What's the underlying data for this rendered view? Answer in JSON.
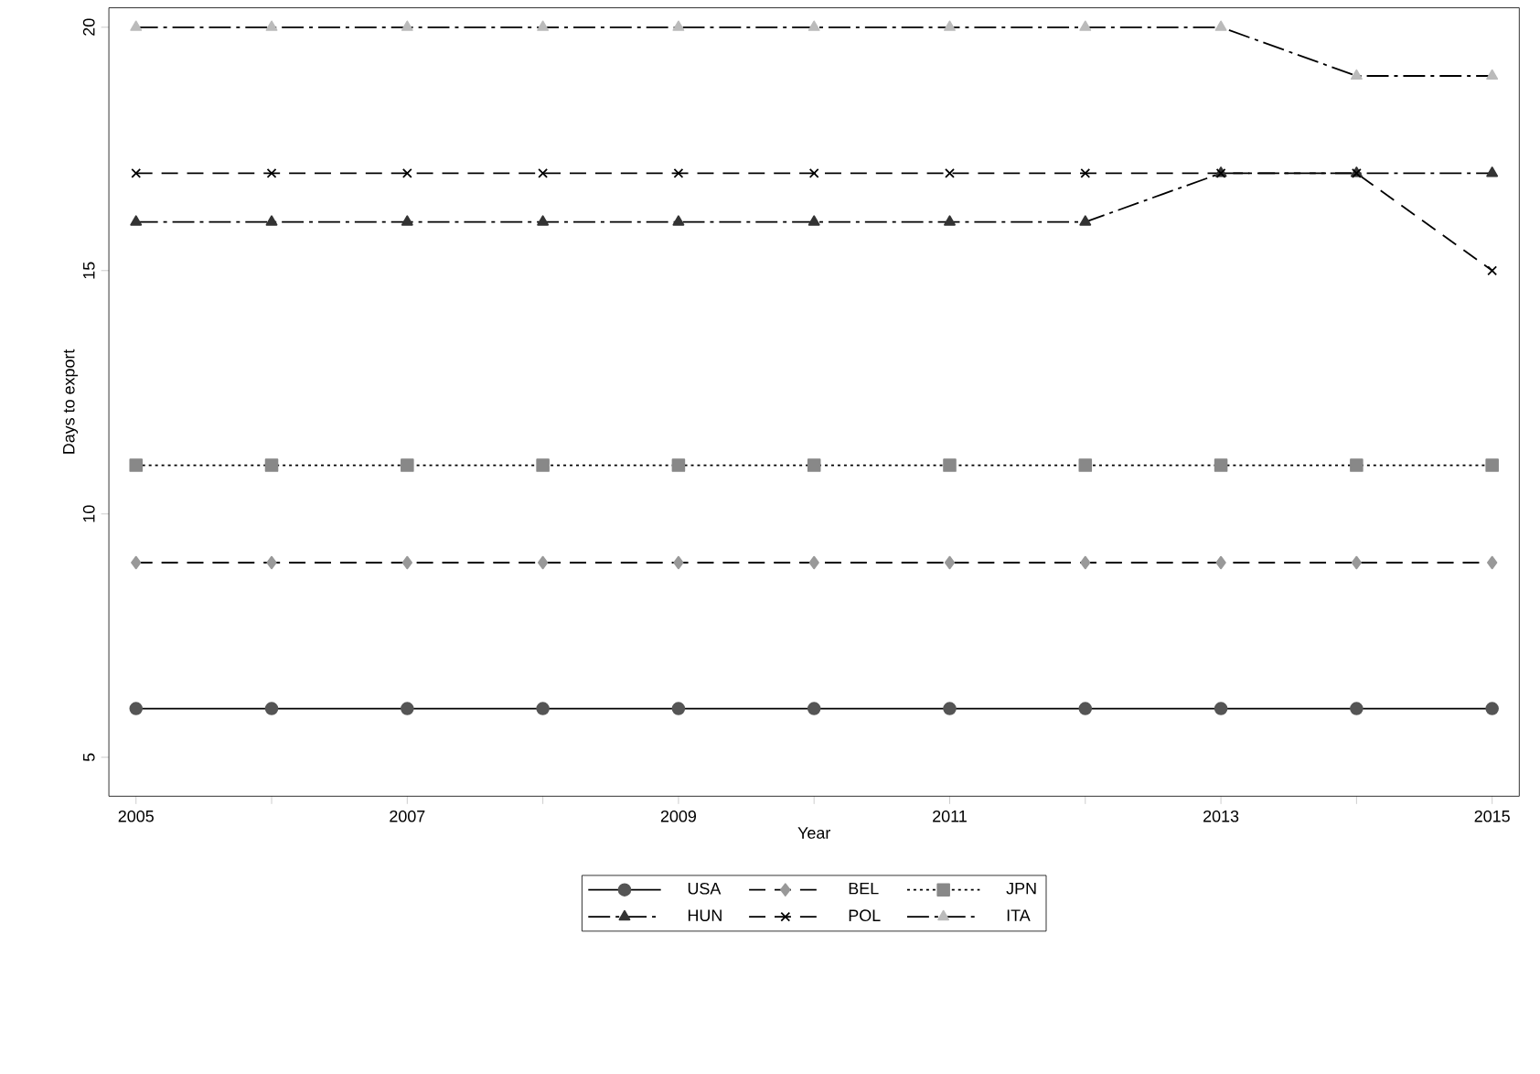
{
  "chart_data": {
    "type": "line",
    "xlabel": "Year",
    "ylabel": "Days to export",
    "x": [
      2005,
      2006,
      2007,
      2008,
      2009,
      2010,
      2011,
      2012,
      2013,
      2014,
      2015
    ],
    "series": [
      {
        "name": "USA",
        "color": "#555555",
        "marker": "circle",
        "line_style": "solid",
        "values": [
          6,
          6,
          6,
          6,
          6,
          6,
          6,
          6,
          6,
          6,
          6
        ]
      },
      {
        "name": "BEL",
        "color": "#999999",
        "marker": "diamond",
        "line_style": "dashed",
        "values": [
          9,
          9,
          9,
          9,
          9,
          9,
          9,
          9,
          9,
          9,
          9
        ]
      },
      {
        "name": "JPN",
        "color": "#888888",
        "marker": "square",
        "line_style": "dotted",
        "values": [
          11,
          11,
          11,
          11,
          11,
          11,
          11,
          11,
          11,
          11,
          11
        ]
      },
      {
        "name": "HUN",
        "color": "#333333",
        "marker": "triangle",
        "line_style": "dashdot",
        "values": [
          16,
          16,
          16,
          16,
          16,
          16,
          16,
          16,
          17,
          17,
          17
        ]
      },
      {
        "name": "POL",
        "color": "#000000",
        "marker": "cross",
        "line_style": "dashed",
        "values": [
          17,
          17,
          17,
          17,
          17,
          17,
          17,
          17,
          17,
          17,
          15
        ]
      },
      {
        "name": "ITA",
        "color": "#bbbbbb",
        "marker": "triangle",
        "line_style": "dashdot",
        "values": [
          20,
          20,
          20,
          20,
          20,
          20,
          20,
          20,
          20,
          19,
          19
        ]
      }
    ],
    "xlim": [
      2004.8,
      2015.2
    ],
    "ylim": [
      4.2,
      20.4
    ],
    "xticks": [
      2005,
      {
        "value": 2006,
        "label": null
      },
      2007,
      {
        "value": 2008,
        "label": null
      },
      2009,
      {
        "value": 2010,
        "label": null
      },
      2011,
      {
        "value": 2012,
        "label": null
      },
      2013,
      {
        "value": 2014,
        "label": null
      },
      2015
    ],
    "yticks": [
      5,
      10,
      15,
      20
    ],
    "grid": false,
    "legend": "bottom"
  }
}
